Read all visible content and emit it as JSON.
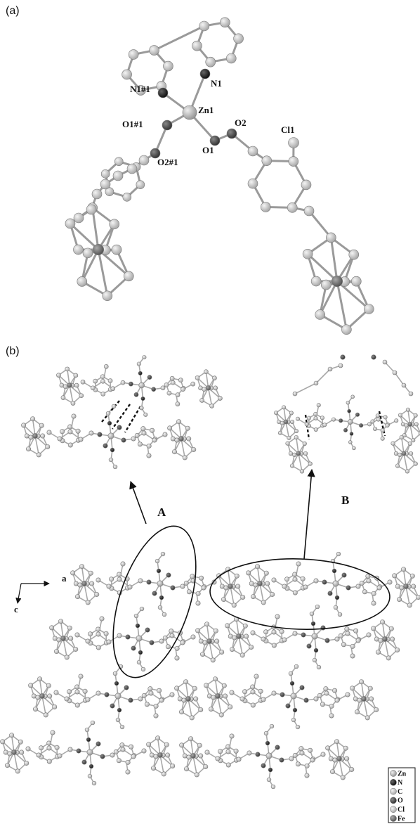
{
  "panel_a": {
    "label": "(a)",
    "atom_labels": [
      "N1#1",
      "N1",
      "Zn1",
      "O1#1",
      "O2",
      "Cl1",
      "O1",
      "O2#1"
    ]
  },
  "panel_b": {
    "label": "(b)",
    "groups": [
      "A",
      "B"
    ],
    "axes": [
      "a",
      "c"
    ]
  },
  "legend": {
    "items": [
      "Zn",
      "N",
      "C",
      "O",
      "Cl",
      "Fe"
    ]
  }
}
